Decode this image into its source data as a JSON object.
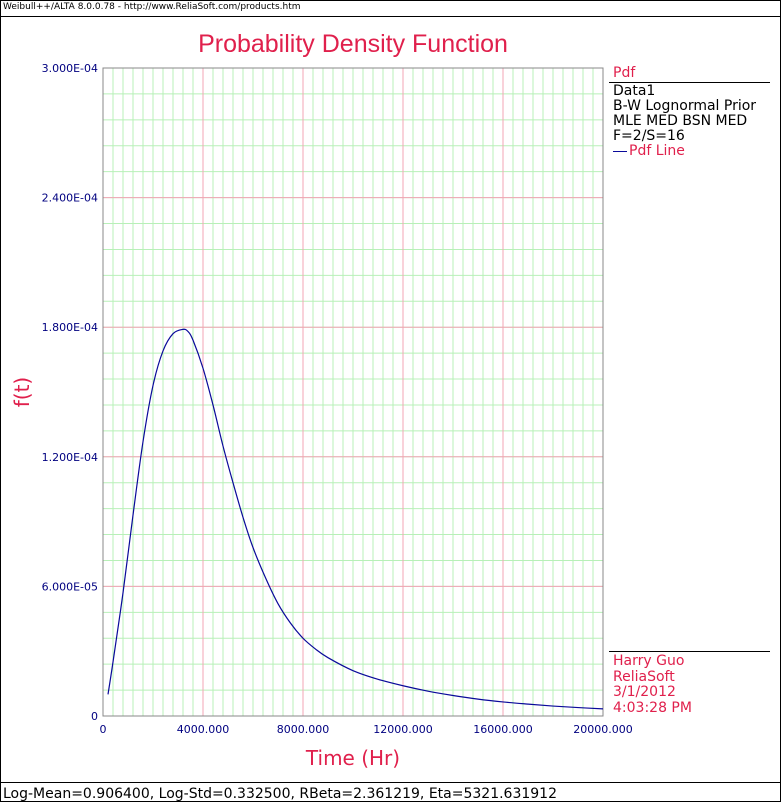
{
  "header": {
    "caption": "Weibull++/ALTA 8.0.0.78 - http://www.ReliaSoft.com/products.htm"
  },
  "footer": {
    "params": "Log-Mean=0.906400, Log-Std=0.332500, RBeta=2.361219, Eta=5321.631912"
  },
  "legend": {
    "title": "Pdf",
    "lines": [
      "Data1",
      "B-W Lognormal Prior",
      "MLE MED BSN MED",
      "F=2/S=16"
    ],
    "series_label": "Pdf Line"
  },
  "stamp": {
    "user": "Harry Guo",
    "company": "ReliaSoft",
    "date": "3/1/2012",
    "time": "4:03:28 PM"
  },
  "colors": {
    "title": "#e0204c",
    "axis_tick_text": "#000080",
    "major_grid": "#f3a5b5",
    "minor_grid": "#b8f0b8",
    "curve": "#0a0a9a"
  },
  "chart_data": {
    "type": "line",
    "title": "Probability Density Function",
    "xlabel": "Time (Hr)",
    "ylabel": "f(t)",
    "xlim": [
      0,
      20000
    ],
    "ylim": [
      0,
      0.0003
    ],
    "x_ticks": [
      0,
      4000,
      8000,
      12000,
      16000,
      20000
    ],
    "x_tick_labels": [
      "0",
      "4000.000",
      "8000.000",
      "12000.000",
      "16000.000",
      "20000.000"
    ],
    "y_ticks": [
      0,
      6e-05,
      0.00012,
      0.00018,
      0.00024,
      0.0003
    ],
    "y_tick_labels": [
      "0",
      "6.000E-05",
      "1.200E-04",
      "1.800E-04",
      "2.400E-04",
      "3.000E-04"
    ],
    "grid": true,
    "legend_position": "right",
    "series": [
      {
        "name": "Pdf Line",
        "x": [
          200,
          400,
          800,
          1200,
          1600,
          2000,
          2400,
          2800,
          3200,
          3400,
          3600,
          4000,
          4400,
          4800,
          5200,
          5600,
          6000,
          6500,
          7000,
          7500,
          8000,
          8500,
          9000,
          10000,
          11000,
          12000,
          13000,
          14000,
          15000,
          16000,
          17000,
          18000,
          19000,
          20000
        ],
        "y": [
          1e-05,
          2.5e-05,
          5.7e-05,
          9.3e-05,
          0.000127,
          0.000153,
          0.000169,
          0.000177,
          0.000179,
          0.000178,
          0.000174,
          0.000161,
          0.000144,
          0.000125,
          0.000108,
          9.2e-05,
          7.8e-05,
          6.4e-05,
          5.2e-05,
          4.3e-05,
          3.6e-05,
          3.1e-05,
          2.7e-05,
          2.1e-05,
          1.7e-05,
          1.4e-05,
          1.15e-05,
          9.5e-06,
          7.8e-06,
          6.5e-06,
          5.5e-06,
          4.6e-06,
          3.9e-06,
          3.3e-06
        ]
      }
    ]
  }
}
